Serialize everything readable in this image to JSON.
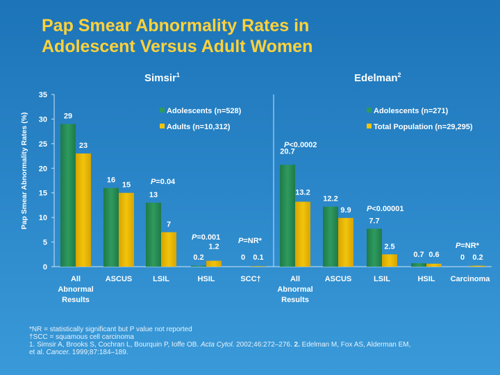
{
  "title": {
    "line1": "Pap Smear Abnormality Rates in",
    "line2": "Adolescent Versus Adult Women"
  },
  "colors": {
    "green": "#2e9a5e",
    "yellow": "#f2c40c",
    "title": "#ffd23a",
    "background": "#2a86c8"
  },
  "chart_data": [
    {
      "type": "bar",
      "panel_title": "Simsir",
      "panel_ref": "1",
      "ylabel": "Pap Smear Abnormality Rates (%)",
      "ylim": [
        0,
        35
      ],
      "yticks": [
        "0",
        "5",
        "10",
        "15",
        "20",
        "25",
        "30",
        "35"
      ],
      "categories": [
        "All Abnormal Results",
        "ASCUS",
        "LSIL",
        "HSIL",
        "SCC"
      ],
      "category_lines": [
        [
          "All",
          "Abnormal",
          "Results"
        ],
        [
          "ASCUS"
        ],
        [
          "LSIL"
        ],
        [
          "HSIL"
        ],
        [
          "SCC†"
        ]
      ],
      "series": [
        {
          "name": "Adolescents (n=528)",
          "values": [
            29,
            16,
            13,
            0.2,
            0
          ],
          "labels": [
            "29",
            "16",
            "13",
            "0.2",
            "0"
          ]
        },
        {
          "name": "Adults (n=10,312)",
          "values": [
            23,
            15,
            7,
            1.2,
            0.1
          ],
          "labels": [
            "23",
            "15",
            "7",
            "1.2",
            "0.1"
          ]
        }
      ],
      "annotations": [
        "P=0.04",
        "P=0.001",
        "P=NR*"
      ]
    },
    {
      "type": "bar",
      "panel_title": "Edelman",
      "panel_ref": "2",
      "ylim": [
        0,
        35
      ],
      "categories": [
        "All Abnormal Results",
        "ASCUS",
        "LSIL",
        "HSIL",
        "Carcinoma"
      ],
      "category_lines": [
        [
          "All",
          "Abnormal",
          "Results"
        ],
        [
          "ASCUS"
        ],
        [
          "LSIL"
        ],
        [
          "HSIL"
        ],
        [
          "Carcinoma"
        ]
      ],
      "series": [
        {
          "name": "Adolescents (n=271)",
          "values": [
            20.7,
            12.2,
            7.7,
            0.7,
            0
          ],
          "labels": [
            "20.7",
            "12.2",
            "7.7",
            "0.7",
            "0"
          ]
        },
        {
          "name": "Total Population (n=29,295)",
          "values": [
            13.2,
            9.9,
            2.5,
            0.6,
            0.2
          ],
          "labels": [
            "13.2",
            "9.9",
            "2.5",
            "0.6",
            "0.2"
          ]
        }
      ],
      "annotations": [
        "P<0.0002",
        "P<0.00001",
        "P=NR*"
      ]
    }
  ],
  "footnotes": {
    "nr": "*NR = statistically significant but P value not reported",
    "scc": "†SCC = squamous cell carcinoma",
    "ref1_num": "1.",
    "ref1_text": "Simsir A, Brooks S, Cochran L, Bourquin P, Ioffe OB.",
    "ref1_journal": "Acta Cytol.",
    "ref1_tail": "2002;46:272–276.",
    "ref2_num": "2.",
    "ref2_text": "Edelman M, Fox AS, Alderman EM,",
    "ref2_cont": "et al.",
    "ref2_journal": "Cancer.",
    "ref2_tail": "1999;87:184–189."
  }
}
